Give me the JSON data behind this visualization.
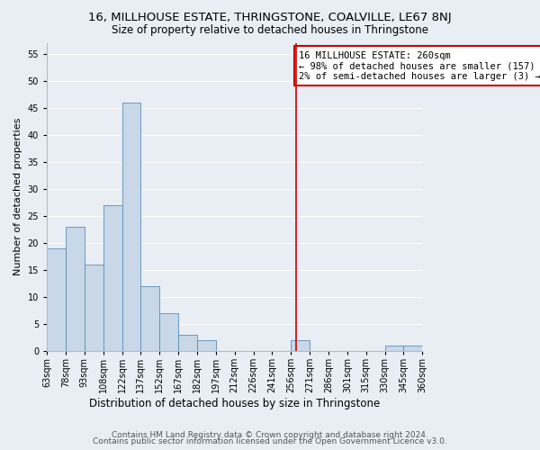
{
  "title": "16, MILLHOUSE ESTATE, THRINGSTONE, COALVILLE, LE67 8NJ",
  "subtitle": "Size of property relative to detached houses in Thringstone",
  "xlabel": "Distribution of detached houses by size in Thringstone",
  "ylabel": "Number of detached properties",
  "bar_color": "#c8d8e8",
  "bar_edge_color": "#5b8db8",
  "background_color": "#e8eef4",
  "bin_labels": [
    "63sqm",
    "78sqm",
    "93sqm",
    "108sqm",
    "122sqm",
    "137sqm",
    "152sqm",
    "167sqm",
    "182sqm",
    "197sqm",
    "212sqm",
    "226sqm",
    "241sqm",
    "256sqm",
    "271sqm",
    "286sqm",
    "301sqm",
    "315sqm",
    "330sqm",
    "345sqm",
    "360sqm"
  ],
  "counts": [
    19,
    23,
    16,
    27,
    46,
    12,
    7,
    3,
    2,
    0,
    0,
    0,
    0,
    2,
    0,
    0,
    0,
    0,
    1,
    1
  ],
  "ylim": [
    0,
    57
  ],
  "yticks": [
    0,
    5,
    10,
    15,
    20,
    25,
    30,
    35,
    40,
    45,
    50,
    55
  ],
  "vline_color": "#cc0000",
  "annotation_text": "16 MILLHOUSE ESTATE: 260sqm\n← 98% of detached houses are smaller (157)\n2% of semi-detached houses are larger (3) →",
  "annotation_box_color": "#ffffff",
  "annotation_border_color": "#cc0000",
  "footer_line1": "Contains HM Land Registry data © Crown copyright and database right 2024.",
  "footer_line2": "Contains public sector information licensed under the Open Government Licence v3.0.",
  "title_fontsize": 9.5,
  "subtitle_fontsize": 8.5,
  "xlabel_fontsize": 8.5,
  "ylabel_fontsize": 8,
  "tick_fontsize": 7,
  "annotation_fontsize": 7.5,
  "footer_fontsize": 6.5,
  "grid_color": "#ffffff"
}
